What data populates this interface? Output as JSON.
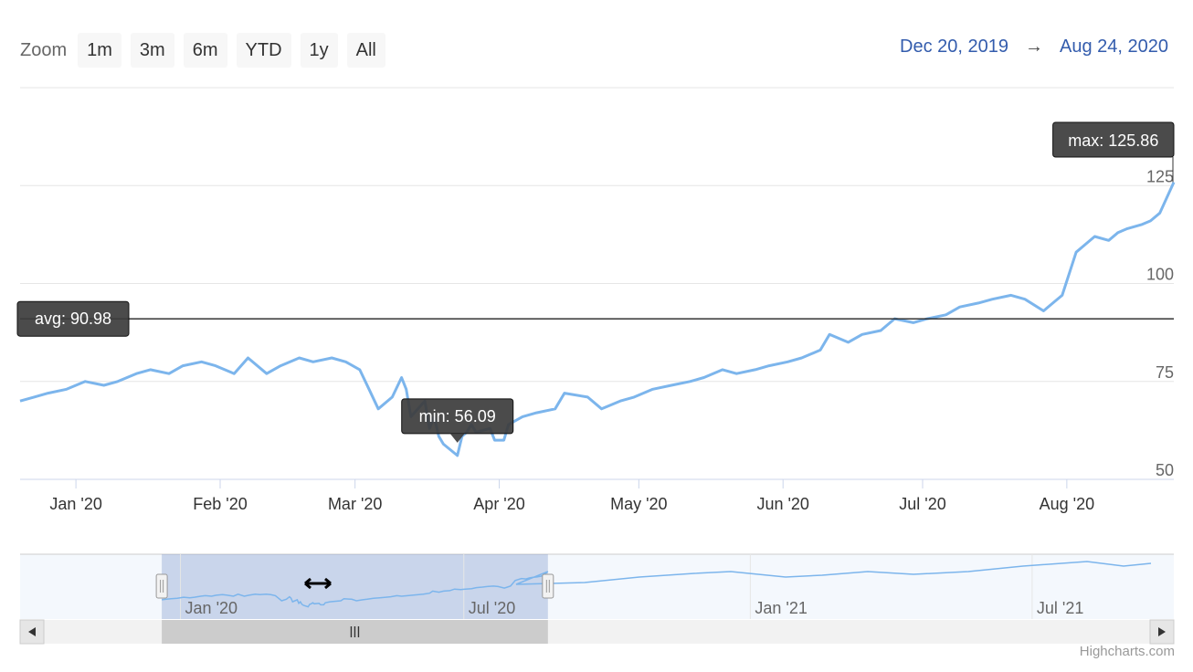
{
  "zoom": {
    "label": "Zoom",
    "buttons": [
      "1m",
      "3m",
      "6m",
      "YTD",
      "1y",
      "All"
    ]
  },
  "range": {
    "from": "Dec 20, 2019",
    "arrow": "→",
    "to": "Aug 24, 2020"
  },
  "plotlines": {
    "avg_label": "avg: 90.98",
    "min_label": "min: 56.09",
    "max_label": "max: 125.86"
  },
  "credit": "Highcharts.com",
  "colors": {
    "series": "#7cb5ec",
    "accent": "#335cad",
    "navigator_mask": "#a5b4e6"
  },
  "chart_data": {
    "type": "line",
    "title": "",
    "xlabel": "",
    "ylabel": "",
    "x_range": [
      "2019-12-20",
      "2020-08-24"
    ],
    "ylim": [
      50,
      130
    ],
    "y_ticks": [
      50,
      75,
      100,
      125
    ],
    "x_ticks": [
      "Jan '20",
      "Feb '20",
      "Mar '20",
      "Apr '20",
      "May '20",
      "Jun '20",
      "Jul '20",
      "Aug '20"
    ],
    "x_tick_dates": [
      "2020-01-01",
      "2020-02-01",
      "2020-03-01",
      "2020-04-01",
      "2020-05-01",
      "2020-06-01",
      "2020-07-01",
      "2020-08-01"
    ],
    "avg": 90.98,
    "min": {
      "date": "2020-03-23",
      "value": 56.09
    },
    "max": {
      "date": "2020-08-24",
      "value": 125.86
    },
    "series": [
      {
        "values": [
          [
            "2019-12-20",
            70
          ],
          [
            "2019-12-23",
            71
          ],
          [
            "2019-12-26",
            72
          ],
          [
            "2019-12-30",
            73
          ],
          [
            "2020-01-03",
            75
          ],
          [
            "2020-01-07",
            74
          ],
          [
            "2020-01-10",
            75
          ],
          [
            "2020-01-14",
            77
          ],
          [
            "2020-01-17",
            78
          ],
          [
            "2020-01-21",
            77
          ],
          [
            "2020-01-24",
            79
          ],
          [
            "2020-01-28",
            80
          ],
          [
            "2020-01-31",
            79
          ],
          [
            "2020-02-04",
            77
          ],
          [
            "2020-02-07",
            81
          ],
          [
            "2020-02-11",
            77
          ],
          [
            "2020-02-14",
            79
          ],
          [
            "2020-02-18",
            81
          ],
          [
            "2020-02-21",
            80
          ],
          [
            "2020-02-25",
            81
          ],
          [
            "2020-02-28",
            80
          ],
          [
            "2020-03-02",
            78
          ],
          [
            "2020-03-04",
            73
          ],
          [
            "2020-03-06",
            68
          ],
          [
            "2020-03-09",
            71
          ],
          [
            "2020-03-11",
            76
          ],
          [
            "2020-03-12",
            73
          ],
          [
            "2020-03-13",
            66
          ],
          [
            "2020-03-16",
            70
          ],
          [
            "2020-03-17",
            63
          ],
          [
            "2020-03-18",
            66
          ],
          [
            "2020-03-19",
            61
          ],
          [
            "2020-03-20",
            59
          ],
          [
            "2020-03-23",
            56.09
          ],
          [
            "2020-03-24",
            61
          ],
          [
            "2020-03-25",
            62
          ],
          [
            "2020-03-26",
            64
          ],
          [
            "2020-03-27",
            62
          ],
          [
            "2020-03-30",
            63
          ],
          [
            "2020-03-31",
            60
          ],
          [
            "2020-04-02",
            60
          ],
          [
            "2020-04-03",
            64
          ],
          [
            "2020-04-06",
            66
          ],
          [
            "2020-04-09",
            67
          ],
          [
            "2020-04-13",
            68
          ],
          [
            "2020-04-15",
            72
          ],
          [
            "2020-04-20",
            71
          ],
          [
            "2020-04-23",
            68
          ],
          [
            "2020-04-27",
            70
          ],
          [
            "2020-04-30",
            71
          ],
          [
            "2020-05-04",
            73
          ],
          [
            "2020-05-08",
            74
          ],
          [
            "2020-05-12",
            75
          ],
          [
            "2020-05-15",
            76
          ],
          [
            "2020-05-19",
            78
          ],
          [
            "2020-05-22",
            77
          ],
          [
            "2020-05-26",
            78
          ],
          [
            "2020-05-29",
            79
          ],
          [
            "2020-06-02",
            80
          ],
          [
            "2020-06-05",
            81
          ],
          [
            "2020-06-09",
            83
          ],
          [
            "2020-06-11",
            87
          ],
          [
            "2020-06-15",
            85
          ],
          [
            "2020-06-18",
            87
          ],
          [
            "2020-06-22",
            88
          ],
          [
            "2020-06-25",
            91
          ],
          [
            "2020-06-29",
            90
          ],
          [
            "2020-07-02",
            91
          ],
          [
            "2020-07-06",
            92
          ],
          [
            "2020-07-09",
            94
          ],
          [
            "2020-07-13",
            95
          ],
          [
            "2020-07-16",
            96
          ],
          [
            "2020-07-20",
            97
          ],
          [
            "2020-07-23",
            96
          ],
          [
            "2020-07-27",
            93
          ],
          [
            "2020-07-29",
            95
          ],
          [
            "2020-07-31",
            97
          ],
          [
            "2020-08-03",
            108
          ],
          [
            "2020-08-05",
            110
          ],
          [
            "2020-08-07",
            112
          ],
          [
            "2020-08-10",
            111
          ],
          [
            "2020-08-12",
            113
          ],
          [
            "2020-08-14",
            114
          ],
          [
            "2020-08-17",
            115
          ],
          [
            "2020-08-19",
            116
          ],
          [
            "2020-08-21",
            118
          ],
          [
            "2020-08-24",
            125.86
          ]
        ]
      }
    ],
    "navigator": {
      "x_ticks": [
        "Jan '20",
        "Jul '20",
        "Jan '21",
        "Jul '21"
      ],
      "x_tick_dates": [
        "2020-01-01",
        "2020-07-01",
        "2021-01-01",
        "2021-07-01"
      ],
      "x_range": [
        "2019-09-20",
        "2021-09-30"
      ],
      "selected": [
        "2019-12-20",
        "2020-08-24"
      ]
    }
  }
}
